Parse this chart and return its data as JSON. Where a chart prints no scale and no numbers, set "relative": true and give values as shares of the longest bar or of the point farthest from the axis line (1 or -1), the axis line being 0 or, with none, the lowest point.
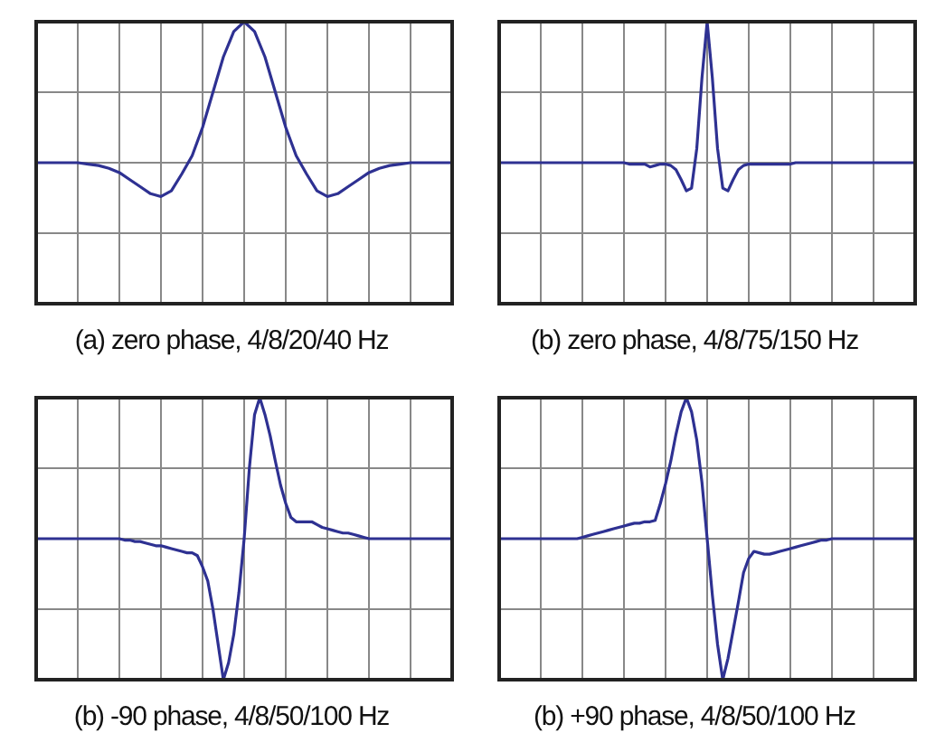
{
  "chart_data": [
    {
      "type": "line",
      "title": "(a) zero phase, 4/8/20/40 Hz",
      "relative": true,
      "grid": true,
      "tick_labels": false,
      "categories": [
        null,
        null,
        null,
        null,
        null,
        null,
        null,
        null,
        null,
        null,
        null,
        null,
        null,
        null,
        null,
        null,
        null,
        null,
        null,
        null,
        null,
        null,
        null,
        null,
        null,
        null,
        null,
        null,
        null,
        null,
        null,
        null,
        null,
        null,
        null,
        null,
        null,
        null,
        null,
        null,
        null
      ],
      "series": [
        {
          "color": "#2e3192",
          "values": [
            0,
            0,
            0,
            0,
            0,
            -0.01,
            -0.02,
            -0.04,
            -0.07,
            -0.12,
            -0.17,
            -0.22,
            -0.24,
            -0.2,
            -0.08,
            0.05,
            0.25,
            0.5,
            0.75,
            0.93,
            1,
            0.93,
            0.75,
            0.5,
            0.25,
            0.05,
            -0.08,
            -0.2,
            -0.24,
            -0.22,
            -0.17,
            -0.12,
            -0.07,
            -0.04,
            -0.02,
            -0.01,
            0,
            0,
            0,
            0,
            0
          ]
        }
      ]
    },
    {
      "type": "line",
      "title": "(b) zero phase, 4/8/75/150 Hz",
      "relative": true,
      "grid": true,
      "tick_labels": false,
      "categories": [
        null,
        null,
        null,
        null,
        null,
        null,
        null,
        null,
        null,
        null,
        null,
        null,
        null,
        null,
        null,
        null,
        null,
        null,
        null,
        null,
        null,
        null,
        null,
        null,
        null,
        null,
        null,
        null,
        null,
        null,
        null,
        null,
        null,
        null,
        null,
        null,
        null,
        null,
        null,
        null,
        null,
        null,
        null,
        null,
        null,
        null,
        null,
        null,
        null,
        null,
        null,
        null,
        null,
        null,
        null,
        null,
        null,
        null,
        null,
        null,
        null,
        null,
        null,
        null,
        null,
        null,
        null,
        null,
        null,
        null,
        null,
        null,
        null,
        null,
        null,
        null,
        null,
        null,
        null,
        null,
        null
      ],
      "series": [
        {
          "color": "#2e3192",
          "values": [
            0,
            0,
            0,
            0,
            0,
            0,
            0,
            0,
            0,
            0,
            0,
            0,
            0,
            0,
            0,
            0,
            0,
            0,
            0,
            0,
            0,
            0,
            0,
            0,
            0,
            -0.01,
            -0.01,
            -0.01,
            -0.01,
            -0.03,
            -0.02,
            -0.01,
            -0.01,
            -0.02,
            -0.05,
            -0.12,
            -0.2,
            -0.18,
            0.1,
            0.6,
            1,
            0.6,
            0.1,
            -0.18,
            -0.2,
            -0.12,
            -0.05,
            -0.02,
            -0.01,
            -0.01,
            -0.01,
            -0.01,
            -0.01,
            -0.01,
            -0.01,
            -0.01,
            -0.01,
            0,
            0,
            0,
            0,
            0,
            0,
            0,
            0,
            0,
            0,
            0,
            0,
            0,
            0,
            0,
            0,
            0,
            0,
            0,
            0,
            0,
            0,
            0,
            0
          ]
        }
      ]
    },
    {
      "type": "line",
      "title": "(b) -90 phase, 4/8/50/100 Hz",
      "relative": true,
      "grid": true,
      "tick_labels": false,
      "categories": [
        null,
        null,
        null,
        null,
        null,
        null,
        null,
        null,
        null,
        null,
        null,
        null,
        null,
        null,
        null,
        null,
        null,
        null,
        null,
        null,
        null,
        null,
        null,
        null,
        null,
        null,
        null,
        null,
        null,
        null,
        null,
        null,
        null,
        null,
        null,
        null,
        null,
        null,
        null,
        null,
        null,
        null,
        null,
        null,
        null,
        null,
        null,
        null,
        null,
        null,
        null,
        null,
        null,
        null,
        null,
        null,
        null,
        null,
        null,
        null,
        null,
        null,
        null,
        null,
        null,
        null,
        null,
        null,
        null,
        null,
        null,
        null,
        null,
        null,
        null,
        null,
        null,
        null,
        null,
        null,
        null
      ],
      "series": [
        {
          "color": "#2e3192",
          "values": [
            0,
            0,
            0,
            0,
            0,
            0,
            0,
            0,
            0,
            0,
            0,
            0,
            0,
            0,
            0,
            0,
            0,
            -0.01,
            -0.01,
            -0.02,
            -0.02,
            -0.03,
            -0.04,
            -0.05,
            -0.05,
            -0.06,
            -0.07,
            -0.08,
            -0.09,
            -0.1,
            -0.1,
            -0.12,
            -0.2,
            -0.3,
            -0.5,
            -0.75,
            -1,
            -0.88,
            -0.68,
            -0.38,
            0,
            0.5,
            0.88,
            1,
            0.88,
            0.73,
            0.55,
            0.38,
            0.25,
            0.15,
            0.12,
            0.12,
            0.12,
            0.12,
            0.1,
            0.08,
            0.07,
            0.06,
            0.05,
            0.04,
            0.04,
            0.03,
            0.02,
            0.01,
            0,
            0,
            0,
            0,
            0,
            0,
            0,
            0,
            0,
            0,
            0,
            0,
            0,
            0,
            0,
            0,
            0
          ]
        }
      ]
    },
    {
      "type": "line",
      "title": "(b) +90 phase, 4/8/50/100 Hz",
      "relative": true,
      "grid": true,
      "tick_labels": false,
      "categories": [
        null,
        null,
        null,
        null,
        null,
        null,
        null,
        null,
        null,
        null,
        null,
        null,
        null,
        null,
        null,
        null,
        null,
        null,
        null,
        null,
        null,
        null,
        null,
        null,
        null,
        null,
        null,
        null,
        null,
        null,
        null,
        null,
        null,
        null,
        null,
        null,
        null,
        null,
        null,
        null,
        null,
        null,
        null,
        null,
        null,
        null,
        null,
        null,
        null,
        null,
        null,
        null,
        null,
        null,
        null,
        null,
        null,
        null,
        null,
        null,
        null,
        null,
        null,
        null,
        null,
        null,
        null,
        null,
        null,
        null,
        null,
        null,
        null,
        null,
        null,
        null,
        null,
        null,
        null,
        null,
        null
      ],
      "series": [
        {
          "color": "#2e3192",
          "values": [
            0,
            0,
            0,
            0,
            0,
            0,
            0,
            0,
            0,
            0,
            0,
            0,
            0,
            0,
            0,
            0,
            0.01,
            0.02,
            0.03,
            0.04,
            0.05,
            0.06,
            0.07,
            0.08,
            0.09,
            0.1,
            0.11,
            0.11,
            0.12,
            0.12,
            0.13,
            0.25,
            0.39,
            0.55,
            0.74,
            0.9,
            1,
            0.9,
            0.7,
            0.4,
            0,
            -0.4,
            -0.75,
            -1,
            -0.85,
            -0.65,
            -0.45,
            -0.24,
            -0.14,
            -0.09,
            -0.1,
            -0.11,
            -0.11,
            -0.1,
            -0.09,
            -0.08,
            -0.07,
            -0.06,
            -0.05,
            -0.04,
            -0.03,
            -0.02,
            -0.01,
            -0.01,
            0,
            0,
            0,
            0,
            0,
            0,
            0,
            0,
            0,
            0,
            0,
            0,
            0,
            0,
            0,
            0,
            0
          ]
        }
      ]
    }
  ]
}
